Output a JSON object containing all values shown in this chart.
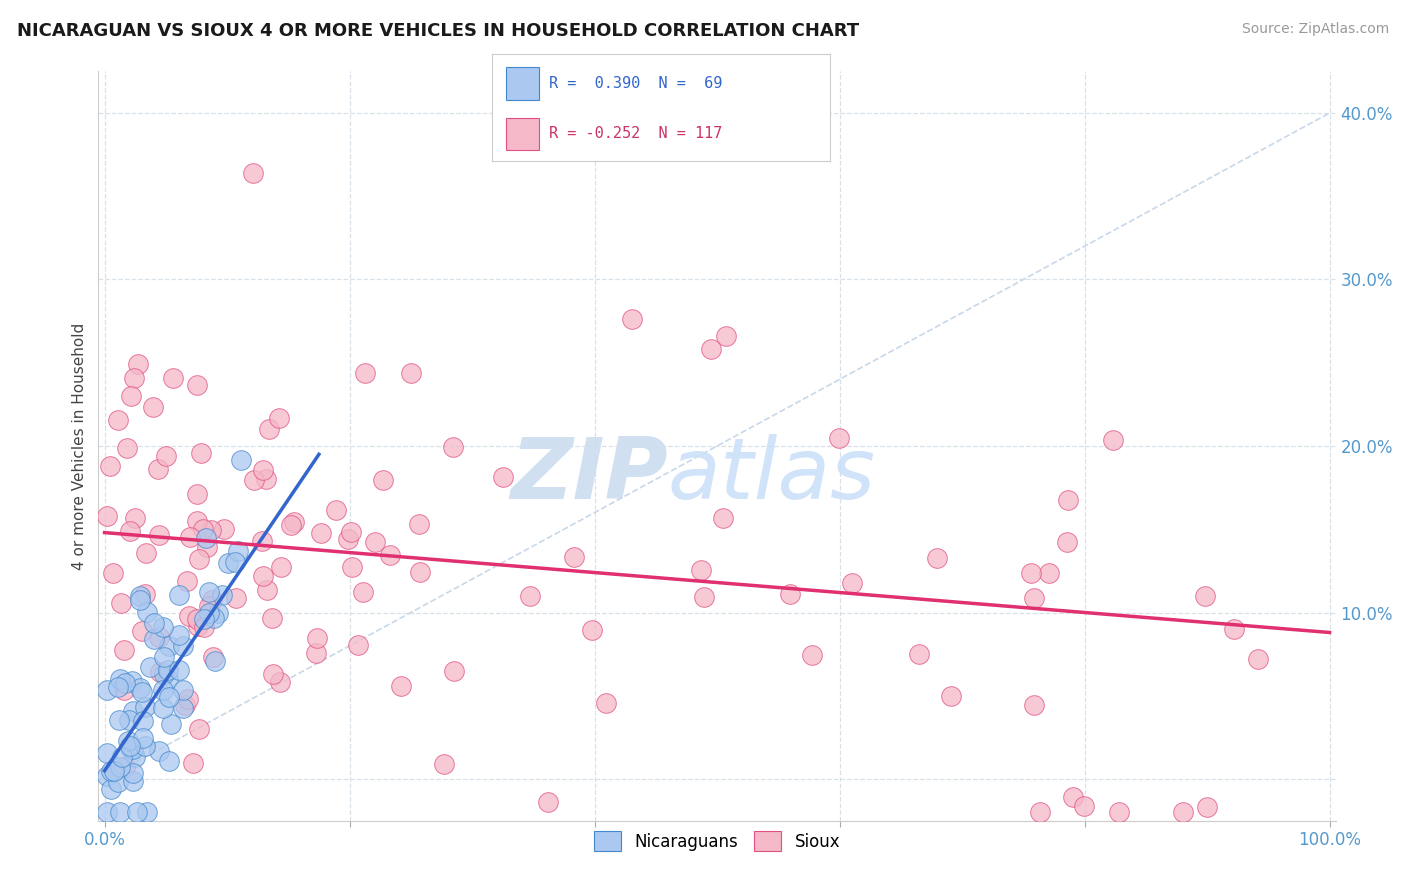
{
  "title": "NICARAGUAN VS SIOUX 4 OR MORE VEHICLES IN HOUSEHOLD CORRELATION CHART",
  "source": "Source: ZipAtlas.com",
  "ylabel": "4 or more Vehicles in Household",
  "xlim": [
    -0.005,
    1.005
  ],
  "ylim": [
    -0.025,
    0.425
  ],
  "xtick_positions": [
    0.0,
    0.2,
    0.4,
    0.6,
    0.8,
    1.0
  ],
  "xticklabels": [
    "0.0%",
    "",
    "",
    "",
    "",
    "100.0%"
  ],
  "ytick_positions": [
    0.0,
    0.1,
    0.2,
    0.3,
    0.4
  ],
  "yticklabels": [
    "",
    "10.0%",
    "20.0%",
    "30.0%",
    "40.0%"
  ],
  "blue_face": "#aac8f0",
  "blue_edge": "#4488cc",
  "pink_face": "#f4b8c8",
  "pink_edge": "#e05080",
  "blue_line": "#3366cc",
  "pink_line": "#e03070",
  "diag_color": "#c8d8e8",
  "grid_color": "#d8e0e8",
  "tick_color": "#5599cc",
  "watermark_zip": "ZIP",
  "watermark_atlas": "atlas",
  "legend_r_blue": "R =  0.390",
  "legend_n_blue": "N =  69",
  "legend_r_pink": "R = -0.252",
  "legend_n_pink": "N = 117",
  "blue_line_x0": 0.0,
  "blue_line_y0": 0.005,
  "blue_line_x1": 0.175,
  "blue_line_y1": 0.195,
  "pink_line_x0": 0.0,
  "pink_line_y0": 0.148,
  "pink_line_x1": 1.0,
  "pink_line_y1": 0.088
}
